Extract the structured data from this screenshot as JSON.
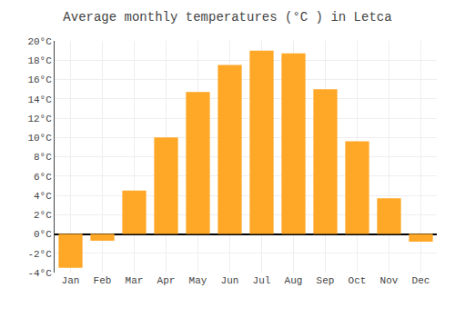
{
  "chart_data": {
    "type": "bar",
    "title": "Average monthly temperatures (°C ) in Letca",
    "categories": [
      "Jan",
      "Feb",
      "Mar",
      "Apr",
      "May",
      "Jun",
      "Jul",
      "Aug",
      "Sep",
      "Oct",
      "Nov",
      "Dec"
    ],
    "values": [
      -3.5,
      -0.7,
      4.5,
      10.0,
      14.7,
      17.5,
      19.0,
      18.7,
      15.0,
      9.6,
      3.7,
      -0.8
    ],
    "color": "#FFA726",
    "ylim": [
      -4,
      20
    ],
    "yticks": [
      {
        "value": -4,
        "label": "-4°C"
      },
      {
        "value": -2,
        "label": "-2°C"
      },
      {
        "value": 0,
        "label": "0°C"
      },
      {
        "value": 2,
        "label": "2°C"
      },
      {
        "value": 4,
        "label": "4°C"
      },
      {
        "value": 6,
        "label": "6°C"
      },
      {
        "value": 8,
        "label": "8°C"
      },
      {
        "value": 10,
        "label": "10°C"
      },
      {
        "value": 12,
        "label": "12°C"
      },
      {
        "value": 14,
        "label": "14°C"
      },
      {
        "value": 16,
        "label": "16°C"
      },
      {
        "value": 18,
        "label": "18°C"
      },
      {
        "value": 20,
        "label": "20°C"
      }
    ],
    "grid": true
  }
}
